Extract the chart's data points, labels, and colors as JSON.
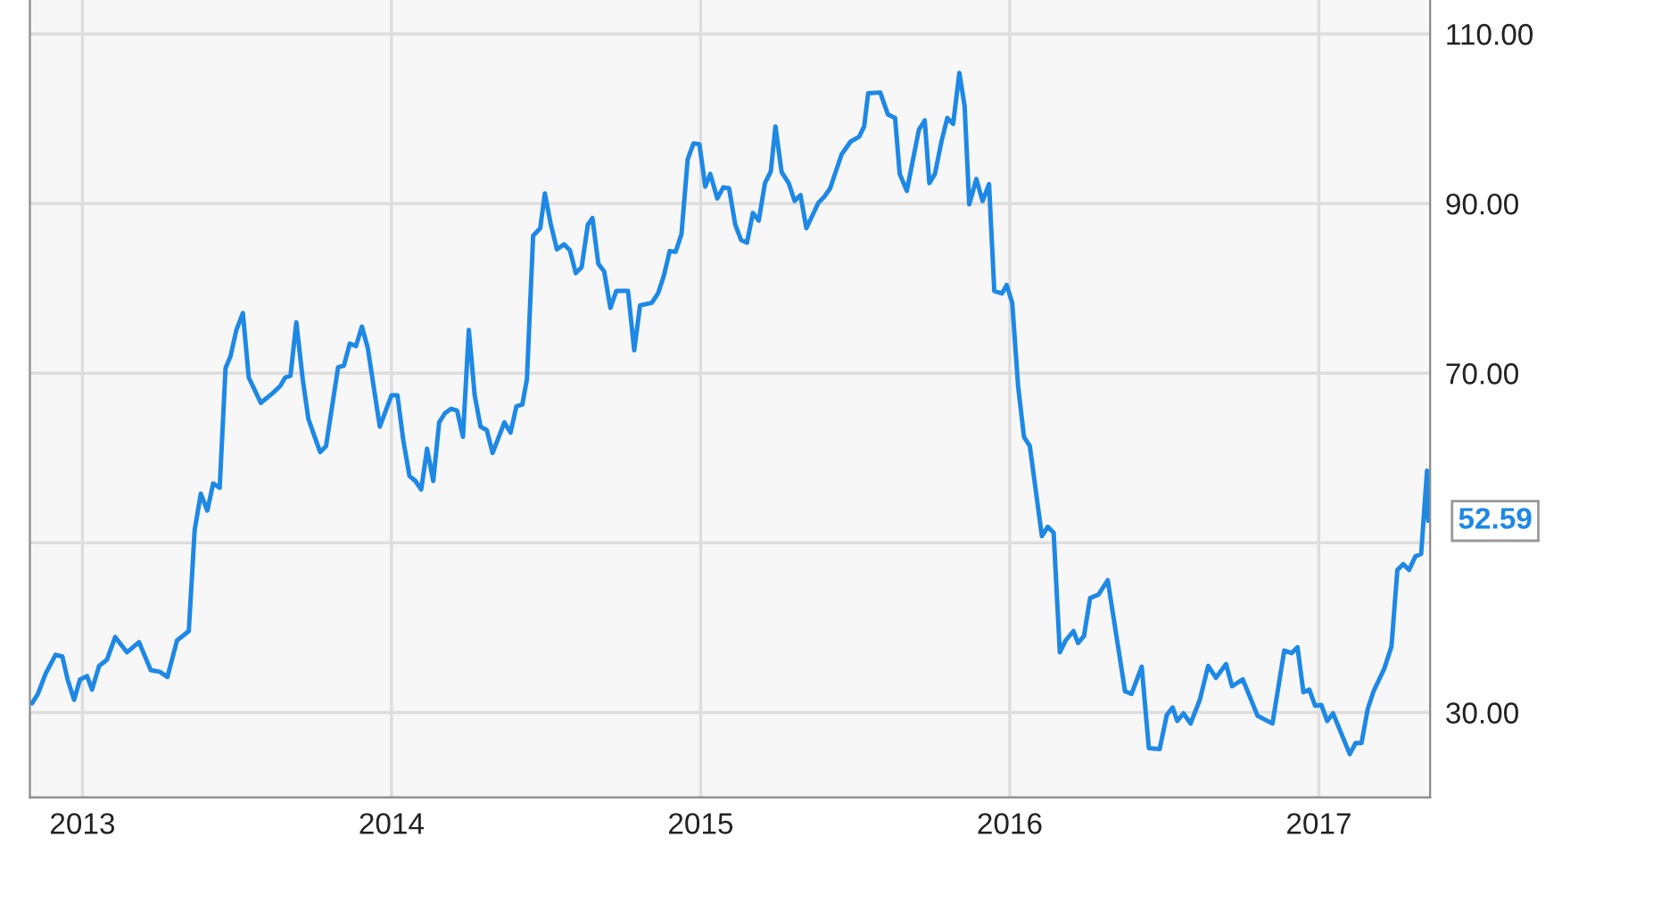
{
  "chart_data": {
    "type": "line",
    "x": [
      2012.837,
      2012.856,
      2012.881,
      2012.913,
      2012.935,
      2012.952,
      2012.973,
      2012.992,
      2013.015,
      2013.031,
      2013.054,
      2013.079,
      2013.106,
      2013.144,
      2013.183,
      2013.221,
      2013.25,
      2013.275,
      2013.306,
      2013.344,
      2013.363,
      2013.383,
      2013.404,
      2013.423,
      2013.444,
      2013.463,
      2013.479,
      2013.498,
      2013.519,
      2013.538,
      2013.577,
      2013.617,
      2013.64,
      2013.656,
      2013.673,
      2013.692,
      2013.713,
      2013.731,
      2013.769,
      2013.788,
      2013.827,
      2013.846,
      2013.865,
      2013.885,
      2013.904,
      2013.923,
      2013.962,
      2014.0,
      2014.019,
      2014.038,
      2014.058,
      2014.077,
      2014.096,
      2014.115,
      2014.135,
      2014.154,
      2014.173,
      2014.192,
      2014.212,
      2014.231,
      2014.25,
      2014.269,
      2014.288,
      2014.308,
      2014.327,
      2014.365,
      2014.385,
      2014.404,
      2014.423,
      2014.438,
      2014.458,
      2014.481,
      2014.496,
      2014.515,
      2014.535,
      2014.558,
      2014.577,
      2014.596,
      2014.615,
      2014.635,
      2014.65,
      2014.669,
      2014.688,
      2014.708,
      2014.727,
      2014.765,
      2014.785,
      2014.804,
      2014.842,
      2014.862,
      2014.881,
      2014.9,
      2014.919,
      2014.938,
      2014.958,
      2014.977,
      2014.996,
      2015.015,
      2015.031,
      2015.054,
      2015.073,
      2015.092,
      2015.112,
      2015.131,
      2015.15,
      2015.169,
      2015.188,
      2015.208,
      2015.227,
      2015.242,
      2015.262,
      2015.285,
      2015.304,
      2015.323,
      2015.342,
      2015.381,
      2015.4,
      2015.419,
      2015.456,
      2015.485,
      2015.513,
      2015.529,
      2015.542,
      2015.581,
      2015.606,
      2015.629,
      2015.644,
      2015.667,
      2015.687,
      2015.706,
      2015.725,
      2015.74,
      2015.758,
      2015.779,
      2015.798,
      2015.817,
      2015.837,
      2015.854,
      2015.869,
      2015.892,
      2015.912,
      2015.933,
      2015.95,
      2015.975,
      2015.99,
      2016.008,
      2016.027,
      2016.046,
      2016.065,
      2016.104,
      2016.123,
      2016.142,
      2016.162,
      2016.181,
      2016.206,
      2016.221,
      2016.24,
      2016.26,
      2016.287,
      2016.317,
      2016.373,
      2016.394,
      2016.427,
      2016.45,
      2016.485,
      2016.508,
      2016.527,
      2016.542,
      2016.562,
      2016.585,
      2016.615,
      2016.642,
      2016.667,
      2016.7,
      2016.719,
      2016.754,
      2016.802,
      2016.85,
      2016.888,
      2016.912,
      2016.931,
      2016.95,
      2016.969,
      2016.988,
      2017.008,
      2017.027,
      2017.046,
      2017.1,
      2017.119,
      2017.138,
      2017.158,
      2017.177,
      2017.212,
      2017.235,
      2017.254,
      2017.273,
      2017.292,
      2017.312,
      2017.331,
      2017.35,
      2017.354
    ],
    "series": [
      {
        "color": "#1e88e5",
        "values": [
          31.1,
          32.2,
          34.6,
          36.8,
          36.6,
          33.9,
          31.5,
          33.9,
          34.3,
          32.7,
          35.5,
          36.2,
          38.9,
          37.1,
          38.3,
          35.0,
          34.8,
          34.2,
          38.5,
          39.6,
          51.5,
          55.8,
          53.8,
          57.0,
          56.5,
          70.6,
          72.0,
          75.1,
          77.1,
          69.5,
          66.5,
          67.7,
          68.5,
          69.5,
          69.7,
          76.0,
          69.2,
          64.6,
          60.7,
          61.4,
          70.7,
          70.9,
          73.5,
          73.2,
          75.5,
          73.0,
          63.7,
          67.4,
          67.4,
          62.1,
          57.9,
          57.3,
          56.3,
          61.1,
          57.3,
          64.2,
          65.3,
          65.8,
          65.6,
          62.5,
          75.1,
          67.4,
          63.7,
          63.3,
          60.6,
          64.2,
          63.0,
          66.1,
          66.3,
          69.3,
          86.2,
          87.1,
          91.2,
          87.6,
          84.6,
          85.2,
          84.5,
          81.8,
          82.5,
          87.5,
          88.3,
          82.9,
          82.0,
          77.7,
          79.7,
          79.7,
          72.7,
          78.0,
          78.3,
          79.4,
          81.5,
          84.4,
          84.3,
          86.4,
          95.2,
          97.1,
          97.0,
          92.0,
          93.5,
          90.6,
          91.9,
          91.8,
          87.5,
          85.7,
          85.4,
          88.9,
          88.0,
          92.4,
          93.8,
          99.1,
          93.7,
          92.4,
          90.3,
          91.0,
          87.1,
          90.1,
          90.8,
          91.8,
          95.8,
          97.3,
          97.9,
          99.1,
          103.0,
          103.1,
          100.5,
          100.1,
          93.5,
          91.5,
          95.2,
          98.7,
          99.8,
          92.4,
          93.5,
          97.3,
          100.1,
          99.4,
          105.4,
          101.5,
          89.9,
          92.9,
          90.3,
          92.3,
          79.7,
          79.4,
          80.4,
          78.3,
          68.5,
          62.5,
          61.4,
          50.8,
          51.9,
          51.2,
          37.1,
          38.5,
          39.6,
          38.2,
          39.0,
          43.5,
          43.9,
          45.6,
          32.5,
          32.2,
          35.4,
          25.8,
          25.7,
          29.7,
          30.6,
          29.0,
          29.9,
          28.7,
          31.5,
          35.5,
          34.1,
          35.7,
          33.1,
          33.9,
          29.6,
          28.7,
          37.3,
          37.0,
          37.7,
          32.4,
          32.7,
          30.8,
          30.9,
          29.0,
          29.9,
          25.1,
          26.4,
          26.4,
          30.4,
          32.5,
          35.2,
          37.8,
          46.8,
          47.5,
          46.8,
          48.4,
          48.7,
          58.5,
          52.59
        ]
      }
    ],
    "xlim": [
      2012.83,
      2017.36
    ],
    "xticks": [
      2013,
      2014,
      2015,
      2016,
      2017
    ],
    "ylim": [
      20,
      114
    ],
    "yticks": [
      {
        "value": 30,
        "label": "30.00"
      },
      {
        "value": 50,
        "label": null
      },
      {
        "value": 70,
        "label": "70.00"
      },
      {
        "value": 90,
        "label": "90.00"
      },
      {
        "value": 110,
        "label": "110.00"
      }
    ],
    "grid": true,
    "annotations": [
      {
        "text": "52.59",
        "x": 2017.354,
        "y": 52.59
      }
    ]
  }
}
